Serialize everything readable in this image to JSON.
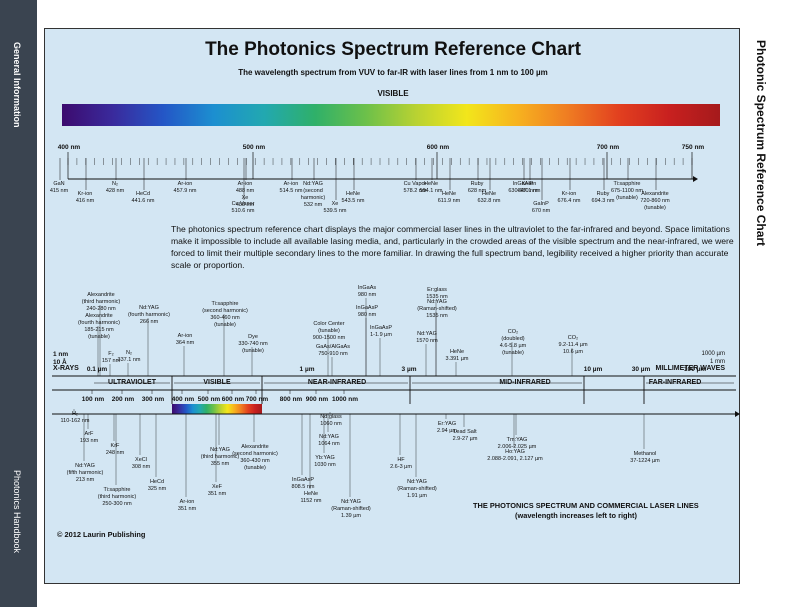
{
  "sidebar": {
    "top_label": "General Information",
    "bottom_label": "Photonics Handbook"
  },
  "right_title": "Photonic Spectrum Reference Chart",
  "header": {
    "title": "The Photonics Spectrum Reference Chart",
    "subtitle": "The wavelength spectrum from VUV to far-IR with laser lines from 1 nm to 100 µm",
    "visible_label": "VISIBLE"
  },
  "colors": {
    "panel": "#d3e6f3",
    "sidebar": "#3a4450",
    "line": "#111111"
  },
  "visible_scale": {
    "ticks": [
      "400 nm",
      "500 nm",
      "600 nm",
      "700 nm",
      "750 nm"
    ],
    "lasers": [
      "GaN\n415 nm",
      "Kr-ion\n416 nm",
      "N₂\n428 nm",
      "HeCd\n441.6 nm",
      "Ar-ion\n457.9 nm",
      "Ar-ion\n488 nm\nXe\n488 nm",
      "Cu Vapor\n510.6 nm",
      "Ar-ion\n514.5 nm",
      "Nd:YAG\n(second\nharmonic)\n532 nm",
      "Xe\n539.5 nm",
      "HeNe\n543.5 nm",
      "Cu Vapor\n578.2 nm",
      "HeNe\n594.1 nm",
      "HeNe\n611.9 nm",
      "Ruby\n628 nm",
      "HeNe\n632.8 nm",
      "InGaAlP\n630-680 nm",
      "Kr-ion\n647.1 nm",
      "GaInP\n670 nm",
      "Kr-ion\n676.4 nm",
      "Ruby\n694.3 nm",
      "Ti:sapphire\n675-1100 nm\n(tunable)",
      "Alexandrite\n720-860 nm\n(tunable)"
    ]
  },
  "paragraph": "The photonics spectrum reference chart displays the major commercial laser lines in the ultraviolet to the far-infrared and beyond. Space limitations make it impossible to include all available lasing media, and, particularly in the crowded areas of the visible spectrum and the near-infrared, we were forced to limit their multiple secondary lines to the more familiar. In drawing the full spectrum band, legibility received a higher priority than accurate scale or proportion.",
  "full_spectrum": {
    "left_end": "1 nm\n10 Å",
    "xrays": "X-RAYS",
    "right_end": "1000 µm\n1 mm",
    "mm_waves": "MILLIMETER WAVES",
    "bands": [
      "ULTRAVIOLET",
      "VISIBLE",
      "NEAR-INFRARED",
      "MID-INFRARED",
      "FAR-INFRARED"
    ],
    "scale_top": [
      "0.1 µm",
      "1 µm",
      "3 µm",
      "10 µm",
      "30 µm",
      "100 µm"
    ],
    "scale_bottom": [
      "100 nm",
      "200 nm",
      "300 nm",
      "400 nm",
      "500 nm",
      "600 nm",
      "700 nm",
      "800 nm",
      "900 nm",
      "1000 nm"
    ],
    "lasers_above": [
      "Alexandrite\n(third harmonic)\n240-280 nm",
      "Alexandrite\n(fourth harmonic)\n185-215 nm\n(tunable)",
      "F₂\n157 nm",
      "Nd:YAG\n(fourth harmonic)\n266 nm",
      "N₂\n337.1 nm",
      "Ar-ion\n364 nm",
      "Ti:sapphire\n(second harmonic)\n360-460 nm\n(tunable)",
      "Dye\n330-740 nm\n(tunable)",
      "Color Center\n(tunable)\n900-1500 nm",
      "GaAs/AlGaAs\n750-910 nm",
      "InGaAs\n980 nm",
      "InGaAsP\n980 nm",
      "InGaAsP\n1-1.9 µm",
      "Er:glass\n1535 nm",
      "Nd:YAG\n(Raman-shifted)\n1535 nm",
      "Nd:YAG\n1570 nm",
      "HeNe\n3.391 µm",
      "CO₂\n(doubled)\n4.6-5.8 µm\n(tunable)",
      "CO₂\n9.2-11.4 µm\n10.6 µm"
    ],
    "lasers_below": [
      "H₂\n110-162 nm",
      "ArF\n193 nm",
      "KrF\n248 nm",
      "Nd:YAG\n(fifth harmonic)\n213 nm",
      "XeCl\n308 nm",
      "Ti:sapphire\n(third harmonic)\n250-300 nm",
      "HeCd\n325 nm",
      "Nd:YAG\n(third harmonic)\n355 nm",
      "XeF\n351 nm",
      "Ar-ion\n351 nm",
      "Alexandrite\n(second harmonic)\n360-430 nm\n(tunable)",
      "Nd:glass\n1060 nm",
      "Nd:YAG\n1064 nm",
      "Yb:YAG\n1030 nm",
      "InGaAsP\n808.5 nm",
      "HeNe\n1152 nm",
      "Nd:YAG\n(Raman-shifted)\n1.39 µm",
      "HF\n2.6-3 µm",
      "Er:YAG\n2.94 µm",
      "Nd:YAG\n(Raman-shifted)\n1.91 µm",
      "Lead Salt\n2.9-27 µm",
      "Tm:YAG\n2.006-2.025 µm",
      "Ho:YAG\n2.088-2.091, 2.127 µm",
      "Methanol\n37-1224 µm"
    ]
  },
  "footer": {
    "caption": "THE PHOTONICS SPECTRUM AND COMMERCIAL LASER LINES",
    "caption_sub": "(wavelength increases left to right)",
    "copyright": "© 2012 Laurin Publishing"
  }
}
